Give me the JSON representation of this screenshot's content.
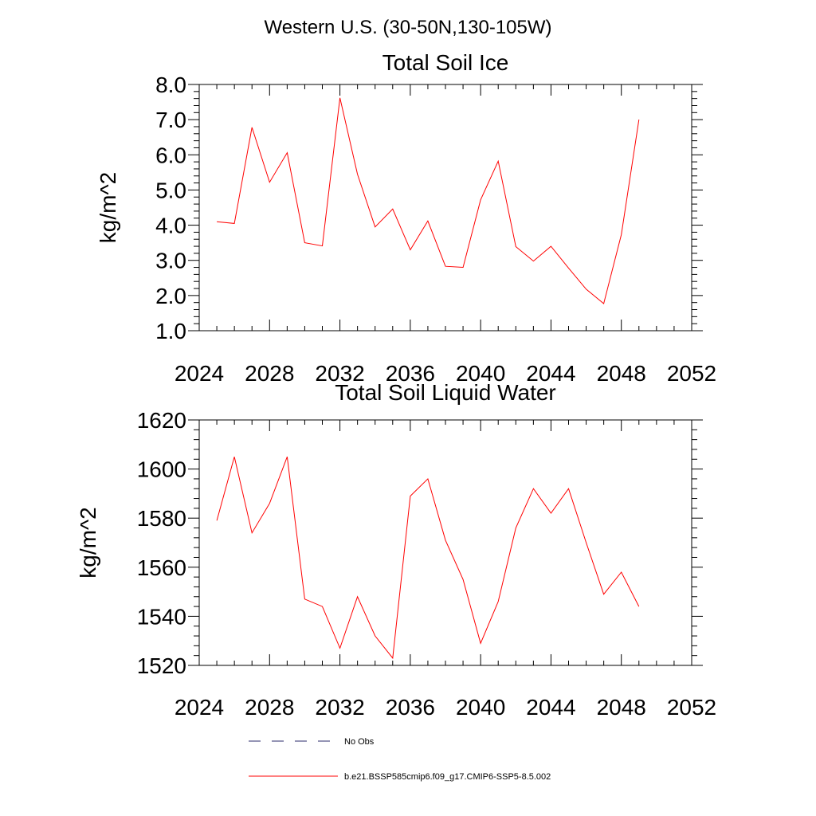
{
  "figure": {
    "title": "Western U.S. (30-50N,130-105W)"
  },
  "chart_data": [
    {
      "type": "line",
      "title": "Total Soil Ice",
      "ylabel": "kg/m^2",
      "xlabel": "",
      "xlim": [
        2024,
        2052
      ],
      "ylim": [
        1.0,
        8.0
      ],
      "x_ticks": [
        2024,
        2028,
        2032,
        2036,
        2040,
        2044,
        2048,
        2052
      ],
      "x_tick_labels": [
        "2024",
        "2028",
        "2032",
        "2036",
        "2040",
        "2044",
        "2048",
        "2052"
      ],
      "y_ticks": [
        1.0,
        2.0,
        3.0,
        4.0,
        5.0,
        6.0,
        7.0,
        8.0
      ],
      "y_tick_labels": [
        "1.0",
        "2.0",
        "3.0",
        "4.0",
        "5.0",
        "6.0",
        "7.0",
        "8.0"
      ],
      "grid": false,
      "series": [
        {
          "name": "b.e21.BSSP585cmip6.f09_g17.CMIP6-SSP5-8.5.002",
          "color": "#ff0000",
          "x": [
            2025,
            2026,
            2027,
            2028,
            2029,
            2030,
            2031,
            2032,
            2033,
            2034,
            2035,
            2036,
            2037,
            2038,
            2039,
            2040,
            2041,
            2042,
            2043,
            2044,
            2045,
            2046,
            2047,
            2048,
            2049
          ],
          "values": [
            4.1,
            4.05,
            6.78,
            5.22,
            6.06,
            3.5,
            3.41,
            7.62,
            5.45,
            3.95,
            4.46,
            3.3,
            4.12,
            2.83,
            2.8,
            4.72,
            5.82,
            3.39,
            2.98,
            3.4,
            2.78,
            2.18,
            1.77,
            3.73,
            7.0
          ]
        }
      ]
    },
    {
      "type": "line",
      "title": "Total Soil Liquid Water",
      "ylabel": "kg/m^2",
      "xlabel": "",
      "xlim": [
        2024,
        2052
      ],
      "ylim": [
        1520,
        1620
      ],
      "x_ticks": [
        2024,
        2028,
        2032,
        2036,
        2040,
        2044,
        2048,
        2052
      ],
      "x_tick_labels": [
        "2024",
        "2028",
        "2032",
        "2036",
        "2040",
        "2044",
        "2048",
        "2052"
      ],
      "y_ticks": [
        1520,
        1540,
        1560,
        1580,
        1600,
        1620
      ],
      "y_tick_labels": [
        "1520",
        "1540",
        "1560",
        "1580",
        "1600",
        "1620"
      ],
      "grid": false,
      "series": [
        {
          "name": "b.e21.BSSP585cmip6.f09_g17.CMIP6-SSP5-8.5.002",
          "color": "#ff0000",
          "x": [
            2025,
            2026,
            2027,
            2028,
            2029,
            2030,
            2031,
            2032,
            2033,
            2034,
            2035,
            2036,
            2037,
            2038,
            2039,
            2040,
            2041,
            2042,
            2043,
            2044,
            2045,
            2046,
            2047,
            2048,
            2049
          ],
          "values": [
            1579,
            1605,
            1574,
            1586,
            1605,
            1547,
            1544,
            1527,
            1548,
            1532,
            1523,
            1589,
            1596,
            1571,
            1555,
            1529,
            1546,
            1576,
            1592,
            1582,
            1592,
            1570,
            1549,
            1558,
            1544
          ]
        }
      ]
    }
  ],
  "legend": {
    "placement": "bottom",
    "items": [
      {
        "label": "No Obs",
        "style": "dashed",
        "color": "#2b2b6b"
      },
      {
        "label": "b.e21.BSSP585cmip6.f09_g17.CMIP6-SSP5-8.5.002",
        "style": "solid",
        "color": "#ff0000"
      }
    ]
  }
}
